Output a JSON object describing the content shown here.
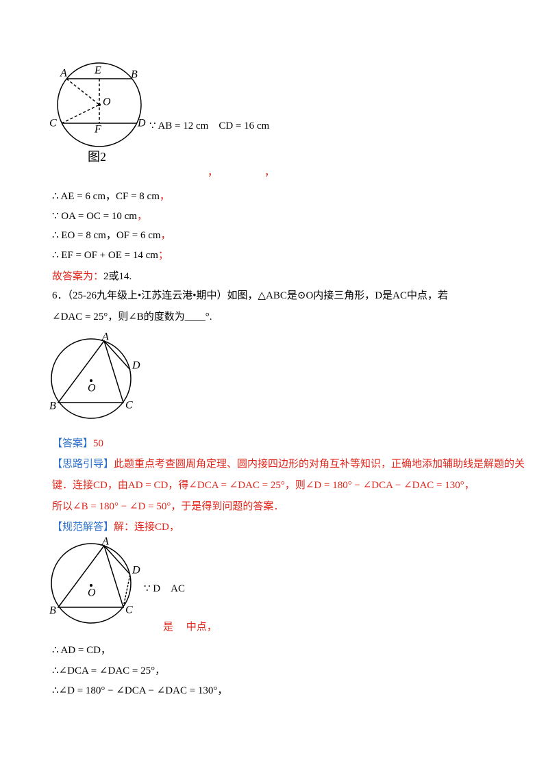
{
  "figure1": {
    "A": "A",
    "E": "E",
    "B": "B",
    "O": "O",
    "C": "C",
    "F": "F",
    "D": "D",
    "caption": "图2"
  },
  "given1": "∵ AB = 12 cm　CD = 16 cm",
  "stray_commas": [
    "，",
    "，"
  ],
  "steps1": [
    {
      "text": "∴ AE = 6 cm，CF = 8 cm",
      "end": "，"
    },
    {
      "text": "∵ OA = OC = 10 cm",
      "end": "，"
    },
    {
      "text": "∴ EO = 8 cm，OF = 6 cm",
      "end": "，"
    },
    {
      "text": "∴ EF = OF + OE = 14 cm",
      "end": "；"
    }
  ],
  "answer1": {
    "label": "故答案为：",
    "value": "2或14."
  },
  "question6": [
    "6．（25-26九年级上•江苏连云港•期中）如图，△ABC是⊙O内接三角形，D是AC中点，若",
    "∠DAC = 25°，则∠B的度数为____°."
  ],
  "figure2": {
    "A": "A",
    "D": "D",
    "O": "O",
    "B": "B",
    "C": "C"
  },
  "answer": {
    "label": "【答案】",
    "value": "50"
  },
  "hint": {
    "label": "【思路引导】",
    "lines": [
      "此题重点考查圆周角定理、圆内接四边形的对角互补等知识，正确地添加辅助线是解题的关",
      "键．连接CD，由AD = CD，得∠DCA = ∠DAC = 25°，则∠D = 180° − ∠DCA − ∠DAC = 130°，",
      "所以∠B = 180° − ∠D = 50°，于是得到问题的答案．"
    ]
  },
  "solution": {
    "label": "【规范解答】",
    "intro": "解：连接CD，",
    "figure": {
      "A": "A",
      "D": "D",
      "O": "O",
      "B": "B",
      "C": "C"
    },
    "given": "∵ D　AC",
    "given_cont": "是　 中点，",
    "steps": [
      "∴ AD = CD，",
      "∴∠DCA = ∠DAC = 25°，",
      "∴∠D = 180° − ∠DCA − ∠DAC = 130°，"
    ]
  }
}
